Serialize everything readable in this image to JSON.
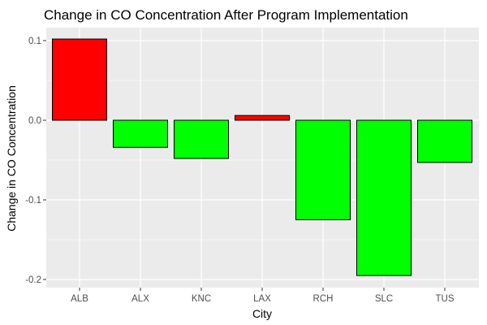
{
  "chart_data": {
    "type": "bar",
    "title": "Change in CO Concentration After Program Implementation",
    "xlabel": "City",
    "ylabel": "Change in CO Concentration",
    "categories": [
      "ALB",
      "ALX",
      "KNC",
      "LAX",
      "RCH",
      "SLC",
      "TUS"
    ],
    "values": [
      0.102,
      -0.034,
      -0.048,
      0.006,
      -0.125,
      -0.195,
      -0.053
    ],
    "ylim": [
      -0.2,
      0.1
    ],
    "yticks": [
      -0.2,
      -0.1,
      0.0,
      0.1
    ],
    "ytick_labels": [
      "-0.2",
      "-0.1",
      "0.0",
      "0.1"
    ],
    "grid": true,
    "legend": "none",
    "colors": {
      "positive": "#ff0000",
      "negative": "#00ff00",
      "panel_background": "#ebebeb",
      "grid": "#ffffff",
      "bar_outline": "#000000"
    }
  }
}
